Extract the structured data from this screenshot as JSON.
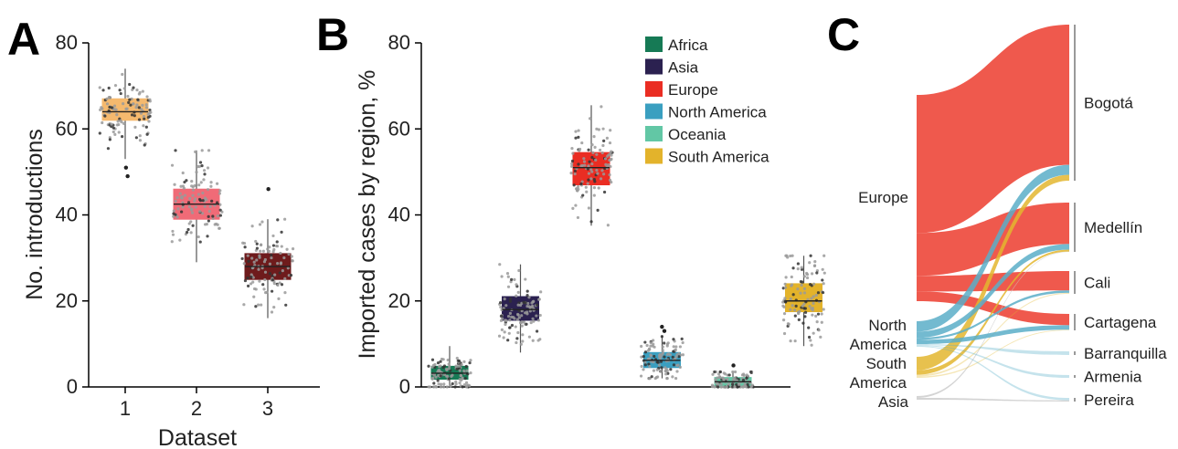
{
  "panels": {
    "A": {
      "letter": "A"
    },
    "B": {
      "letter": "B"
    },
    "C": {
      "letter": "C"
    }
  },
  "chart_data": [
    {
      "id": "A",
      "type": "box",
      "xlabel": "Dataset",
      "ylabel": "No. introductions",
      "ylim": [
        0,
        80
      ],
      "yticks": [
        0,
        20,
        40,
        60,
        80
      ],
      "categories": [
        "1",
        "2",
        "3"
      ],
      "colors": [
        "#f5b96e",
        "#f06b77",
        "#6e1b1c"
      ],
      "boxes": [
        {
          "category": "1",
          "q1": 62,
          "median": 64,
          "q3": 67,
          "whisker_low": 53,
          "whisker_high": 74,
          "outliers": [
            51,
            49
          ]
        },
        {
          "category": "2",
          "q1": 39,
          "median": 42.5,
          "q3": 46,
          "whisker_low": 29,
          "whisker_high": 55,
          "outliers": []
        },
        {
          "category": "3",
          "q1": 25,
          "median": 28,
          "q3": 31,
          "whisker_low": 16,
          "whisker_high": 39,
          "outliers": [
            46
          ]
        }
      ],
      "grid": false
    },
    {
      "id": "B",
      "type": "box",
      "xlabel": "",
      "ylabel": "Imported cases by region, %",
      "ylim": [
        0,
        80
      ],
      "yticks": [
        0,
        20,
        40,
        60,
        80
      ],
      "categories": [
        "Africa",
        "Asia",
        "Europe",
        "North America",
        "Oceania",
        "South America"
      ],
      "colors": [
        "#167a55",
        "#2b2150",
        "#ea2d23",
        "#3a9fc0",
        "#62c7a5",
        "#e3b32b"
      ],
      "boxes": [
        {
          "category": "Africa",
          "q1": 1.8,
          "median": 3.2,
          "q3": 4.8,
          "whisker_low": 0,
          "whisker_high": 9.5,
          "outliers": []
        },
        {
          "category": "Asia",
          "q1": 15.5,
          "median": 18,
          "q3": 21,
          "whisker_low": 8,
          "whisker_high": 28.5,
          "outliers": []
        },
        {
          "category": "Europe",
          "q1": 47,
          "median": 51,
          "q3": 54.5,
          "whisker_low": 37.5,
          "whisker_high": 65.5,
          "outliers": []
        },
        {
          "category": "North America",
          "q1": 4.5,
          "median": 6.2,
          "q3": 8,
          "whisker_low": 2,
          "whisker_high": 12,
          "outliers": [
            13,
            14
          ]
        },
        {
          "category": "Oceania",
          "q1": 0,
          "median": 1.2,
          "q3": 2.2,
          "whisker_low": 0,
          "whisker_high": 3.5,
          "outliers": [
            5
          ]
        },
        {
          "category": "South America",
          "q1": 17.5,
          "median": 20,
          "q3": 24,
          "whisker_low": 9.5,
          "whisker_high": 30.5,
          "outliers": []
        }
      ],
      "legend": {
        "position": "top-right",
        "entries": [
          "Africa",
          "Asia",
          "Europe",
          "North America",
          "Oceania",
          "South America"
        ]
      },
      "grid": false
    },
    {
      "id": "C",
      "type": "sankey",
      "sources": [
        "Europe",
        "North America",
        "South America",
        "Asia"
      ],
      "source_colors": [
        "#ee4b3e",
        "#5aaec8",
        "#e3b62f",
        "#cccccc"
      ],
      "targets": [
        "Bogotá",
        "Medellín",
        "Cali",
        "Cartagena",
        "Barranquilla",
        "Armenia",
        "Pereira"
      ],
      "flows": [
        {
          "source": "Europe",
          "target": "Bogotá",
          "value": 71
        },
        {
          "source": "Europe",
          "target": "Medellín",
          "value": 22
        },
        {
          "source": "Europe",
          "target": "Cali",
          "value": 8
        },
        {
          "source": "Europe",
          "target": "Cartagena",
          "value": 5
        },
        {
          "source": "North America",
          "target": "Bogotá",
          "value": 5
        },
        {
          "source": "North America",
          "target": "Medellín",
          "value": 3
        },
        {
          "source": "North America",
          "target": "Cali",
          "value": 1
        },
        {
          "source": "North America",
          "target": "Cartagena",
          "value": 2
        },
        {
          "source": "North America",
          "target": "Barranquilla",
          "value": 0.5
        },
        {
          "source": "North America",
          "target": "Armenia",
          "value": 0.4
        },
        {
          "source": "North America",
          "target": "Pereira",
          "value": 0.4
        },
        {
          "source": "South America",
          "target": "Bogotá",
          "value": 3
        },
        {
          "source": "South America",
          "target": "Medellín",
          "value": 1
        },
        {
          "source": "South America",
          "target": "Cali",
          "value": 0.4
        },
        {
          "source": "South America",
          "target": "Cartagena",
          "value": 0.3
        },
        {
          "source": "Asia",
          "target": "Medellín",
          "value": 0.2
        },
        {
          "source": "Asia",
          "target": "Pereira",
          "value": 0.2
        }
      ]
    }
  ]
}
